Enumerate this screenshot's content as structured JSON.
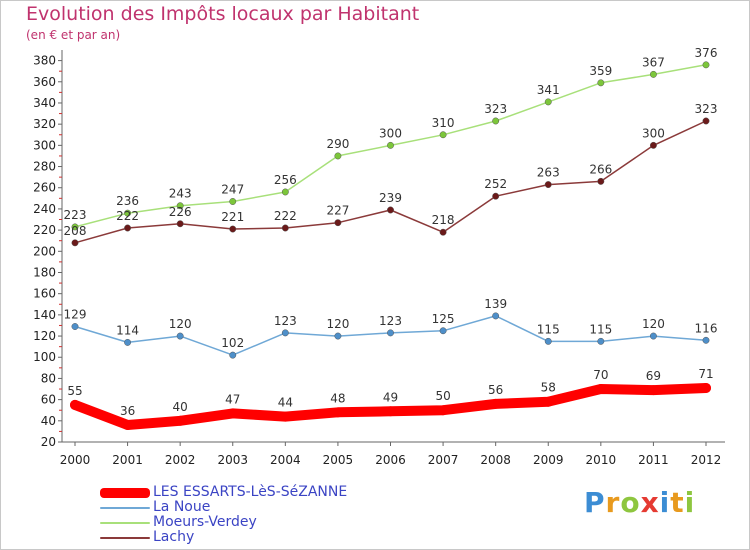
{
  "header": {
    "title": "Evolution des Impôts locaux par Habitant",
    "subtitle": "(en € et par an)"
  },
  "brand": {
    "letters": [
      "P",
      "r",
      "o",
      "x",
      "i",
      "t",
      "i"
    ],
    "colors": [
      "#3c8dd4",
      "#e89a1e",
      "#8ec63f",
      "#e53a32",
      "#3c8dd4",
      "#e89a1e",
      "#8ec63f"
    ]
  },
  "chart_data": {
    "type": "line",
    "title": "Evolution des Impôts locaux par Habitant",
    "subtitle": "(en € et par an)",
    "xlabel": "",
    "ylabel": "",
    "x": [
      "2000",
      "2001",
      "2002",
      "2003",
      "2004",
      "2005",
      "2006",
      "2007",
      "2008",
      "2009",
      "2010",
      "2011",
      "2012"
    ],
    "ylim": [
      20,
      390
    ],
    "yticks": [
      20,
      40,
      60,
      80,
      100,
      120,
      140,
      160,
      180,
      200,
      220,
      240,
      260,
      280,
      300,
      320,
      340,
      360,
      380
    ],
    "grid": false,
    "legend_position": "bottom-left",
    "series": [
      {
        "name": "LES ESSARTS-LèS-SéZANNE",
        "color": "#ff0000",
        "marker": "#ff0000",
        "width": 10,
        "values": [
          55,
          36,
          40,
          47,
          44,
          48,
          49,
          50,
          56,
          58,
          70,
          69,
          71
        ]
      },
      {
        "name": "La Noue",
        "color": "#6fa8d6",
        "marker": "#4e8fc9",
        "width": 1.5,
        "values": [
          129,
          114,
          120,
          102,
          123,
          120,
          123,
          125,
          139,
          115,
          115,
          120,
          116
        ]
      },
      {
        "name": "Moeurs-Verdey",
        "color": "#a8e07a",
        "marker": "#7cc63a",
        "width": 1.5,
        "values": [
          223,
          236,
          243,
          247,
          256,
          290,
          300,
          310,
          323,
          341,
          359,
          367,
          376
        ]
      },
      {
        "name": "Lachy",
        "color": "#8b3a3a",
        "marker": "#6b1a1a",
        "width": 1.5,
        "values": [
          208,
          222,
          226,
          221,
          222,
          227,
          239,
          218,
          252,
          263,
          266,
          300,
          323
        ]
      }
    ]
  }
}
